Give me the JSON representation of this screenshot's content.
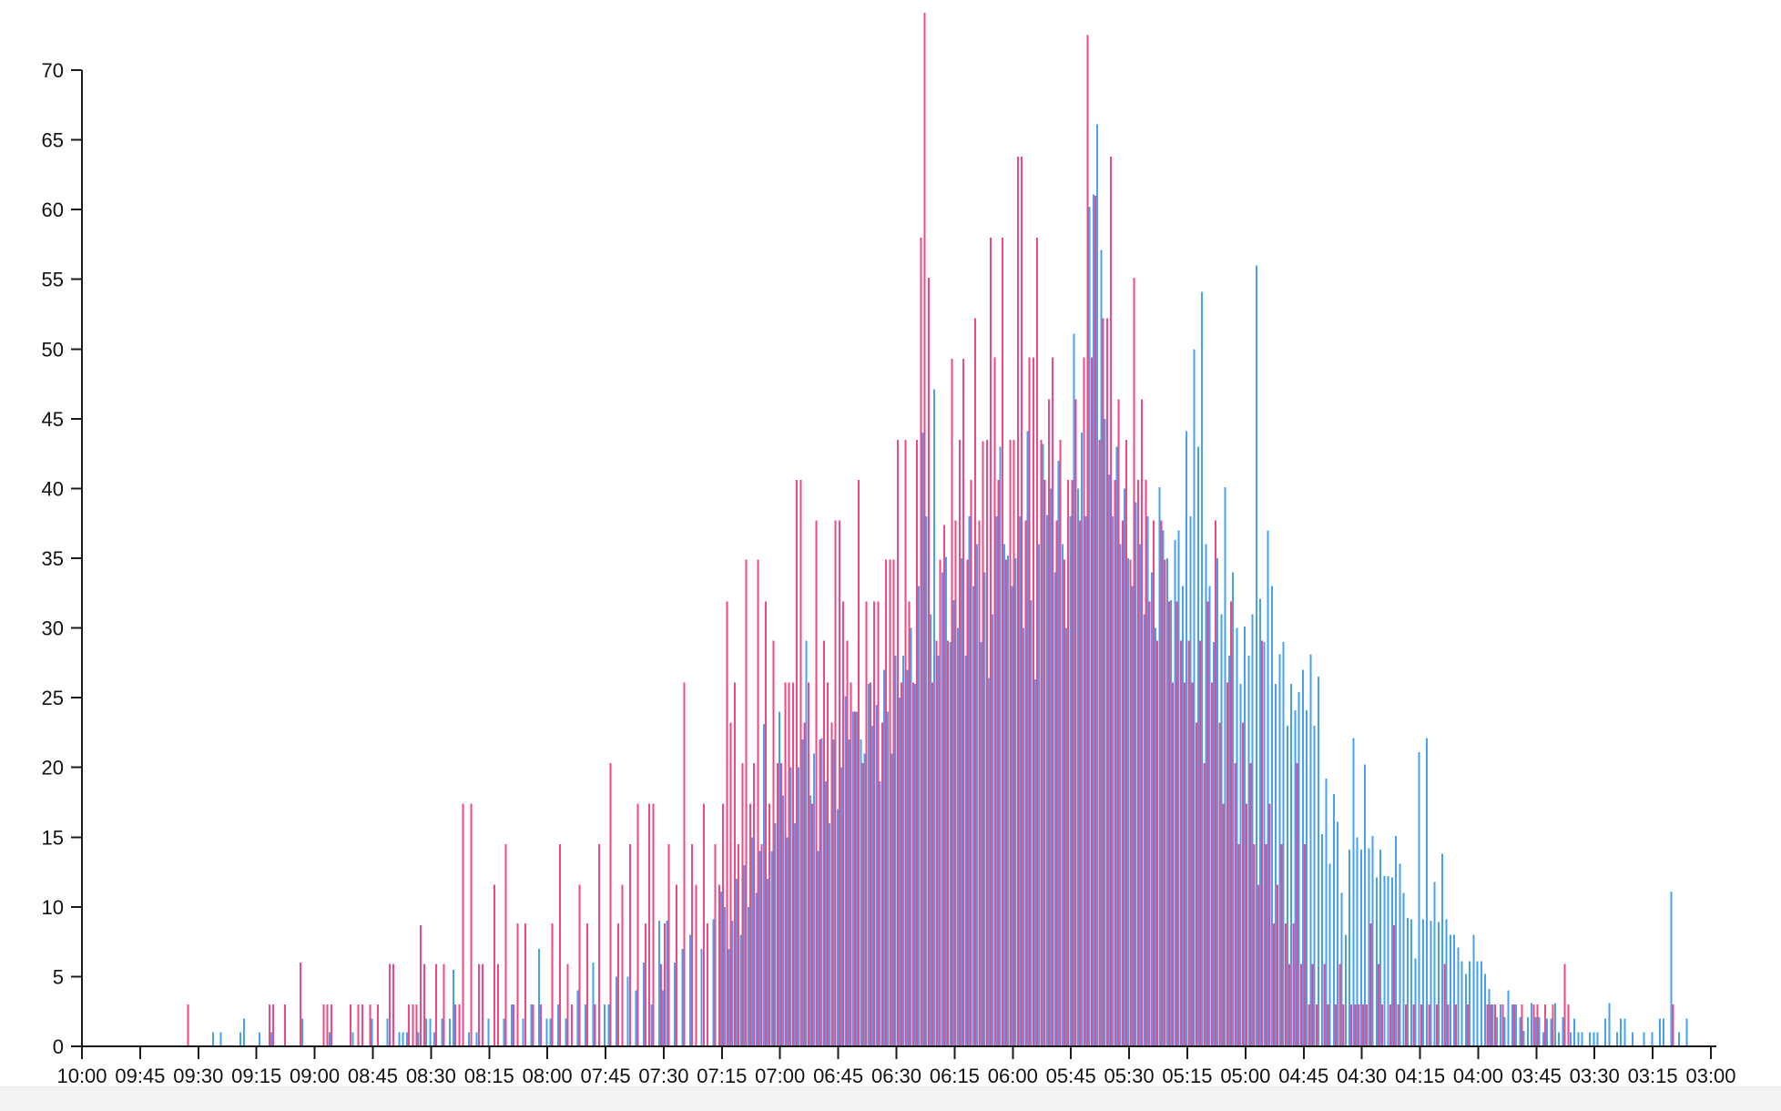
{
  "page": {
    "background": "#ffffff",
    "footer_strip_color": "#f2f1f3"
  },
  "chart_data": {
    "type": "bar",
    "title": "",
    "xlabel": "",
    "ylabel": "",
    "legend": "none",
    "grid": false,
    "axis_color": "#1a1a1a",
    "x_axis": {
      "start": "10:00",
      "end": "03:00",
      "direction": "descending-time",
      "bin_minutes": 1,
      "tick_labels": [
        "10:00",
        "09:45",
        "09:30",
        "09:15",
        "09:00",
        "08:45",
        "08:30",
        "08:15",
        "08:00",
        "07:45",
        "07:30",
        "07:15",
        "07:00",
        "06:45",
        "06:30",
        "06:15",
        "06:00",
        "05:45",
        "05:30",
        "05:15",
        "05:00",
        "04:45",
        "04:30",
        "04:15",
        "04:00",
        "03:45",
        "03:30",
        "03:15",
        "03:00"
      ]
    },
    "y_axis": {
      "min": 0,
      "max": 70,
      "tick_step": 5,
      "tick_labels": [
        "0",
        "5",
        "10",
        "15",
        "20",
        "25",
        "30",
        "35",
        "40",
        "45",
        "50",
        "55",
        "60",
        "65",
        "70"
      ]
    },
    "series": [
      {
        "name": "pink",
        "color": "#f64684",
        "values": [
          0,
          0,
          0,
          0,
          0,
          0,
          0,
          0,
          0,
          0,
          0,
          0,
          0,
          0,
          0,
          0,
          0,
          0,
          0,
          0,
          0,
          0,
          0,
          0,
          0,
          0,
          0,
          3,
          0,
          0,
          0,
          0,
          0,
          0,
          0,
          0,
          0,
          0,
          0,
          0,
          0,
          0,
          0,
          0,
          0,
          0,
          0,
          0,
          3,
          3,
          0,
          0,
          3,
          0,
          0,
          0,
          6,
          0,
          0,
          0,
          0,
          0,
          3,
          3,
          3,
          0,
          0,
          0,
          0,
          3,
          0,
          3,
          3,
          0,
          3,
          0,
          3,
          0,
          0,
          5.9,
          5.9,
          0,
          0,
          0,
          3,
          3,
          3,
          8.7,
          5.9,
          0,
          0,
          5.9,
          0,
          5.9,
          0,
          0,
          3,
          3,
          17.4,
          0,
          17.4,
          0,
          5.9,
          5.9,
          0,
          0,
          11.6,
          5.9,
          0,
          14.5,
          0,
          3,
          8.8,
          0,
          8.8,
          0,
          3,
          0,
          3,
          0,
          0,
          8.8,
          0,
          14.5,
          0,
          5.9,
          3,
          0,
          11.6,
          0,
          8.8,
          0,
          3,
          14.5,
          0,
          0,
          20.3,
          0,
          8.8,
          11.6,
          0,
          14.5,
          0,
          17.4,
          0,
          8.8,
          17.4,
          17.4,
          0,
          5.9,
          8.8,
          14.5,
          0,
          11.6,
          0,
          26.1,
          0,
          14.5,
          11.6,
          0,
          17.4,
          8.8,
          0,
          14.5,
          11.6,
          17.4,
          31.9,
          23.2,
          26.1,
          14.5,
          20.3,
          34.9,
          17.4,
          20.3,
          34.9,
          14.5,
          31.9,
          17.4,
          29.1,
          20.3,
          20.3,
          26.1,
          26.1,
          26.1,
          40.6,
          40.6,
          23.2,
          26.1,
          17.4,
          37.7,
          22,
          29.1,
          26.1,
          23.2,
          37.7,
          37.7,
          31.9,
          29.1,
          26.1,
          24,
          40.6,
          20.3,
          31.9,
          26.1,
          31.9,
          31.9,
          23.2,
          34.9,
          34.9,
          34.9,
          43.5,
          26.1,
          43.5,
          31.9,
          26.1,
          43.5,
          58,
          74.1,
          55.1,
          26.1,
          29.1,
          34.9,
          37.4,
          29.1,
          49.3,
          37.7,
          43.5,
          49.3,
          34.9,
          40.6,
          52.2,
          37.7,
          43.4,
          43.5,
          58,
          49.4,
          40.6,
          58,
          34.9,
          43.5,
          43.5,
          63.8,
          63.8,
          37.7,
          49.4,
          49.4,
          58,
          43.5,
          40.6,
          46.4,
          49.4,
          37.7,
          43.5,
          34.9,
          40.6,
          40.6,
          46.4,
          37.7,
          49.4,
          72.5,
          49.4,
          61,
          43.5,
          52.2,
          52.2,
          63.8,
          40.6,
          46.4,
          37.7,
          43.5,
          34.9,
          55.1,
          40.6,
          46.4,
          40.6,
          31.9,
          37.7,
          29.1,
          37.7,
          34.9,
          31.9,
          26.1,
          31.9,
          29.1,
          26.1,
          29.1,
          26.1,
          23.2,
          29.1,
          20.3,
          31.9,
          26.1,
          37.7,
          23.2,
          17.4,
          26.1,
          31.9,
          20.3,
          14.5,
          23.2,
          17.4,
          20.3,
          14.5,
          11.6,
          29.1,
          14.5,
          17.4,
          8.8,
          11.6,
          14.5,
          8.8,
          5.9,
          8.8,
          20.3,
          5.9,
          14.5,
          3,
          5.9,
          3,
          0,
          5.9,
          3,
          0,
          3,
          5.9,
          3,
          0,
          3,
          3,
          3,
          3,
          3,
          8.8,
          0,
          5.9,
          3,
          0,
          3,
          8.7,
          3,
          0,
          3,
          0,
          3,
          0,
          3,
          0,
          3,
          0,
          3,
          0,
          5.9,
          3,
          0,
          3,
          0,
          0,
          3,
          0,
          0,
          0,
          0,
          3,
          3,
          3,
          0,
          3,
          0,
          0,
          3,
          0,
          3,
          0,
          0,
          3,
          3,
          0,
          3,
          0,
          3,
          0,
          0,
          5.9,
          3,
          0,
          0,
          0,
          0,
          0,
          0,
          0,
          0,
          0,
          0,
          0,
          0,
          0,
          0,
          0,
          0,
          0,
          0,
          0,
          0,
          0,
          0,
          0,
          0,
          0,
          0,
          3,
          0,
          0,
          0,
          0,
          0,
          0,
          0,
          0,
          0,
          0
        ]
      },
      {
        "name": "blue",
        "color": "#46a2f0",
        "values": [
          0,
          0,
          0,
          0,
          0,
          0,
          0,
          0,
          0,
          0,
          0,
          0,
          0,
          0,
          0,
          0,
          0,
          0,
          0,
          0,
          0,
          0,
          0,
          0,
          0,
          0,
          0,
          0,
          0,
          0,
          0,
          0,
          0,
          1,
          0,
          1,
          0,
          0,
          0,
          0,
          1,
          2,
          0,
          0,
          0,
          1,
          0,
          0,
          1,
          0,
          0,
          0,
          0,
          0,
          0,
          0,
          2,
          0,
          0,
          0,
          0,
          0,
          0,
          1,
          0,
          0,
          0,
          0,
          0,
          1,
          0,
          0,
          0,
          0,
          2,
          0,
          0,
          0,
          2,
          0,
          0,
          1,
          1,
          1,
          0,
          0,
          1,
          0,
          2,
          2,
          1,
          0,
          2,
          0,
          2,
          5.5,
          0,
          0,
          0,
          1,
          0,
          1,
          0,
          0,
          2,
          0,
          0,
          0,
          2,
          0,
          3,
          0,
          0,
          2,
          0,
          3,
          0,
          7,
          0,
          2,
          2,
          0,
          3,
          0,
          2,
          0,
          0,
          4,
          0,
          3,
          0,
          6,
          0,
          0,
          3,
          3,
          0,
          5,
          0,
          0,
          5,
          0,
          4,
          0,
          6,
          0,
          3,
          0,
          9,
          4,
          9,
          0,
          6,
          0,
          7,
          0,
          8,
          0,
          0,
          7,
          0,
          0,
          9.1,
          0,
          11.1,
          10,
          7,
          9,
          12,
          8,
          13,
          10,
          15,
          11,
          14,
          23.1,
          12,
          14,
          16,
          24,
          18,
          15,
          20,
          16,
          20,
          22,
          29.1,
          18,
          21,
          14,
          22.1,
          19,
          16,
          22,
          17,
          20,
          25.1,
          22,
          24,
          24,
          22,
          21,
          26,
          23,
          24.5,
          19,
          27,
          24,
          21,
          28,
          25,
          28,
          27,
          30,
          26,
          33,
          44,
          38,
          31,
          47.1,
          28,
          34,
          35.1,
          29,
          32,
          30,
          35,
          28,
          38,
          33,
          36,
          29,
          34,
          26.4,
          31,
          38,
          43,
          36,
          35.2,
          33,
          35,
          38,
          30,
          44.1,
          32,
          26.3,
          36,
          43.2,
          38.1,
          40,
          34,
          42,
          36,
          30,
          38,
          51.1,
          40,
          44,
          38,
          60.2,
          61.1,
          66.1,
          57.1,
          45,
          41,
          38,
          43,
          36,
          40,
          35,
          33,
          39,
          36,
          31,
          38,
          34,
          30,
          40.1,
          37,
          35,
          32,
          36.3,
          37,
          33,
          44.1,
          38,
          50,
          43,
          54.1,
          36,
          33,
          29,
          35,
          31,
          40.1,
          28,
          34,
          30,
          26,
          30.1,
          28,
          31,
          56,
          32.1,
          29,
          37,
          33,
          26,
          28.1,
          29,
          23,
          26,
          24.1,
          25.4,
          27,
          24.1,
          28.1,
          23,
          26.5,
          15.2,
          19.2,
          13.1,
          18.1,
          16.1,
          11,
          8,
          14.1,
          22.1,
          15,
          14.1,
          20.2,
          14.2,
          15.1,
          12.1,
          14.1,
          12.2,
          12.2,
          12.1,
          15.1,
          13.1,
          11,
          9.2,
          9.1,
          6.3,
          21.1,
          9.1,
          22.1,
          9,
          11.8,
          8.9,
          13.8,
          9.1,
          8,
          8,
          7.1,
          6.1,
          5.2,
          6.1,
          8,
          6.1,
          6.1,
          5.2,
          4.1,
          3,
          2.1,
          3,
          2.1,
          4,
          3,
          3,
          2.1,
          1.1,
          2.1,
          3.1,
          2.1,
          2.1,
          1,
          2,
          2,
          3.1,
          1,
          2.1,
          0,
          1,
          2,
          1,
          1,
          0,
          1,
          1,
          1,
          0,
          2,
          3.1,
          0,
          1,
          2,
          2,
          0,
          1,
          0,
          0,
          1,
          0,
          1,
          0,
          2,
          2,
          0,
          11.1,
          0,
          1,
          0,
          2,
          0,
          0,
          0,
          0,
          0,
          0,
          0
        ]
      }
    ]
  }
}
